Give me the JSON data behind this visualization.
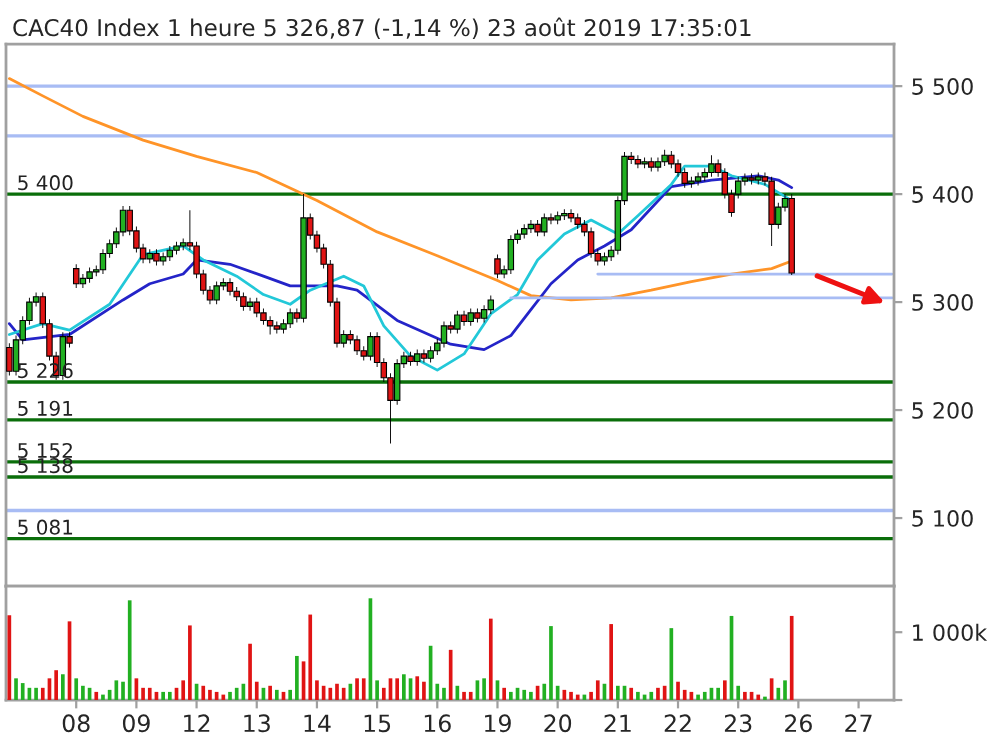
{
  "chart_data": [
    {
      "type": "candlestick",
      "title": "CAC40 Index 1 heure 5 326,87 (-1,14 %) 23 août 2019 17:35:01",
      "categories": [
        null,
        null,
        null,
        null,
        null,
        null,
        null,
        null,
        null,
        null,
        "08",
        null,
        null,
        null,
        null,
        null,
        null,
        null,
        null,
        "09",
        null,
        null,
        null,
        null,
        null,
        null,
        null,
        null,
        "12",
        null,
        null,
        null,
        null,
        null,
        null,
        null,
        null,
        "13",
        null,
        null,
        null,
        null,
        null,
        null,
        null,
        null,
        "14",
        null,
        null,
        null,
        null,
        null,
        null,
        null,
        null,
        "15",
        null,
        null,
        null,
        null,
        null,
        null,
        null,
        null,
        "16",
        null,
        null,
        null,
        null,
        null,
        null,
        null,
        null,
        "19",
        null,
        null,
        null,
        null,
        null,
        null,
        null,
        null,
        "20",
        null,
        null,
        null,
        null,
        null,
        null,
        null,
        null,
        "21",
        null,
        null,
        null,
        null,
        null,
        null,
        null,
        null,
        "22",
        null,
        null,
        null,
        null,
        null,
        null,
        null,
        null,
        "23",
        null,
        null,
        null,
        null,
        null,
        null,
        null,
        null,
        "26",
        null,
        null,
        null,
        null,
        null,
        null,
        null,
        null,
        "27",
        null,
        null,
        null,
        null,
        null
      ],
      "colors": [
        "#e01414",
        "#22b022",
        "#22b022",
        "#22b022",
        "#22b022",
        "#e01414",
        "#e01414",
        "#e01414",
        "#22b022",
        "#e01414",
        "#e01414",
        "#22b022",
        "#22b022",
        "#22b022",
        "#22b022",
        "#22b022",
        "#22b022",
        "#22b022",
        "#e01414",
        "#e01414",
        "#e01414",
        "#22b022",
        "#e01414",
        "#22b022",
        "#22b022",
        "#22b022",
        "#22b022",
        "#e01414",
        "#e01414",
        "#e01414",
        "#e01414",
        "#22b022",
        "#22b022",
        "#e01414",
        "#e01414",
        "#e01414",
        "#22b022",
        "#e01414",
        "#e01414",
        "#e01414",
        "#e01414",
        "#22b022",
        "#22b022",
        "#e01414",
        "#22b022",
        "#e01414",
        "#e01414",
        "#e01414",
        "#e01414",
        "#e01414",
        "#22b022",
        "#e01414",
        "#e01414",
        "#e01414",
        "#22b022",
        "#e01414",
        "#e01414",
        "#e01414",
        "#22b022",
        "#22b022",
        "#e01414",
        "#22b022",
        "#e01414",
        "#22b022",
        "#22b022",
        "#22b022",
        "#e01414",
        "#22b022",
        "#e01414",
        "#22b022",
        "#e01414",
        "#22b022",
        "#22b022",
        "#e01414",
        "#22b022",
        "#22b022",
        "#22b022",
        "#22b022",
        "#22b022",
        "#e01414",
        "#22b022",
        "#e01414",
        "#22b022",
        "#22b022",
        "#e01414",
        "#e01414",
        "#e01414",
        "#e01414",
        "#e01414",
        "#22b022",
        "#22b022",
        "#22b022",
        "#22b022",
        "#e01414",
        "#e01414",
        "#22b022",
        "#e01414",
        "#22b022",
        "#22b022",
        "#e01414",
        "#e01414",
        "#e01414",
        "#22b022",
        "#22b022",
        "#22b022",
        "#22b022",
        "#e01414",
        "#e01414",
        "#e01414",
        "#22b022",
        "#22b022",
        "#e01414",
        "#22b022",
        "#e01414",
        "#e01414",
        "#22b022",
        "#22b022",
        "#e01414",
        null,
        null,
        null,
        null,
        null,
        null,
        null,
        null,
        null,
        null,
        null,
        null,
        null,
        null,
        null
      ],
      "ohlc": [
        [
          5258,
          5262,
          5232,
          5236
        ],
        [
          5236,
          5269,
          5232,
          5265
        ],
        [
          5265,
          5287,
          5261,
          5283
        ],
        [
          5283,
          5304,
          5279,
          5300
        ],
        [
          5300,
          5309,
          5296,
          5305
        ],
        [
          5305,
          5309,
          5276,
          5280
        ],
        [
          5280,
          5284,
          5246,
          5250
        ],
        [
          5250,
          5254,
          5228,
          5232
        ],
        [
          5232,
          5272,
          5228,
          5268
        ],
        [
          5268,
          5272,
          5258,
          5262
        ],
        [
          5331,
          5335,
          5313,
          5317
        ],
        [
          5317,
          5326,
          5313,
          5322
        ],
        [
          5322,
          5332,
          5318,
          5328
        ],
        [
          5328,
          5334,
          5324,
          5330
        ],
        [
          5330,
          5349,
          5326,
          5345
        ],
        [
          5345,
          5358,
          5341,
          5354
        ],
        [
          5354,
          5369,
          5350,
          5365
        ],
        [
          5365,
          5389,
          5361,
          5385
        ],
        [
          5385,
          5389,
          5362,
          5366
        ],
        [
          5366,
          5370,
          5346,
          5350
        ],
        [
          5350,
          5354,
          5336,
          5340
        ],
        [
          5340,
          5349,
          5336,
          5345
        ],
        [
          5345,
          5349,
          5334,
          5338
        ],
        [
          5338,
          5346,
          5334,
          5342
        ],
        [
          5342,
          5352,
          5338,
          5348
        ],
        [
          5348,
          5356,
          5344,
          5352
        ],
        [
          5352,
          5359,
          5348,
          5355
        ],
        [
          5355,
          5385,
          5348,
          5352
        ],
        [
          5352,
          5356,
          5322,
          5326
        ],
        [
          5326,
          5330,
          5307,
          5311
        ],
        [
          5311,
          5315,
          5298,
          5302
        ],
        [
          5302,
          5319,
          5298,
          5315
        ],
        [
          5315,
          5322,
          5311,
          5318
        ],
        [
          5318,
          5322,
          5306,
          5310
        ],
        [
          5310,
          5314,
          5301,
          5305
        ],
        [
          5305,
          5309,
          5292,
          5296
        ],
        [
          5296,
          5304,
          5292,
          5300
        ],
        [
          5300,
          5304,
          5286,
          5290
        ],
        [
          5290,
          5294,
          5279,
          5283
        ],
        [
          5283,
          5287,
          5270,
          5278
        ],
        [
          5278,
          5282,
          5271,
          5275
        ],
        [
          5275,
          5284,
          5271,
          5280
        ],
        [
          5280,
          5294,
          5276,
          5290
        ],
        [
          5290,
          5294,
          5281,
          5285
        ],
        [
          5285,
          5400,
          5281,
          5378
        ],
        [
          5378,
          5382,
          5358,
          5362
        ],
        [
          5362,
          5366,
          5346,
          5350
        ],
        [
          5350,
          5354,
          5331,
          5335
        ],
        [
          5335,
          5339,
          5296,
          5300
        ],
        [
          5300,
          5304,
          5258,
          5262
        ],
        [
          5262,
          5274,
          5258,
          5270
        ],
        [
          5270,
          5274,
          5261,
          5265
        ],
        [
          5265,
          5269,
          5251,
          5255
        ],
        [
          5255,
          5259,
          5246,
          5250
        ],
        [
          5250,
          5272,
          5246,
          5268
        ],
        [
          5268,
          5272,
          5240,
          5244
        ],
        [
          5244,
          5248,
          5226,
          5230
        ],
        [
          5230,
          5234,
          5169,
          5209
        ],
        [
          5209,
          5247,
          5205,
          5243
        ],
        [
          5243,
          5254,
          5239,
          5250
        ],
        [
          5250,
          5254,
          5241,
          5245
        ],
        [
          5245,
          5256,
          5241,
          5252
        ],
        [
          5252,
          5256,
          5244,
          5248
        ],
        [
          5248,
          5259,
          5244,
          5255
        ],
        [
          5255,
          5266,
          5251,
          5262
        ],
        [
          5262,
          5282,
          5258,
          5278
        ],
        [
          5278,
          5282,
          5271,
          5275
        ],
        [
          5275,
          5292,
          5271,
          5288
        ],
        [
          5288,
          5292,
          5278,
          5282
        ],
        [
          5282,
          5294,
          5278,
          5290
        ],
        [
          5290,
          5294,
          5281,
          5285
        ],
        [
          5285,
          5297,
          5281,
          5293
        ],
        [
          5293,
          5306,
          5289,
          5302
        ],
        [
          5340,
          5344,
          5322,
          5326
        ],
        [
          5326,
          5334,
          5322,
          5330
        ],
        [
          5330,
          5362,
          5326,
          5358
        ],
        [
          5358,
          5367,
          5354,
          5363
        ],
        [
          5363,
          5372,
          5359,
          5368
        ],
        [
          5368,
          5376,
          5364,
          5372
        ],
        [
          5372,
          5376,
          5361,
          5365
        ],
        [
          5365,
          5382,
          5361,
          5378
        ],
        [
          5378,
          5382,
          5372,
          5376
        ],
        [
          5376,
          5384,
          5372,
          5380
        ],
        [
          5380,
          5386,
          5376,
          5382
        ],
        [
          5382,
          5386,
          5374,
          5378
        ],
        [
          5378,
          5382,
          5368,
          5372
        ],
        [
          5372,
          5376,
          5361,
          5365
        ],
        [
          5365,
          5369,
          5341,
          5345
        ],
        [
          5345,
          5349,
          5334,
          5338
        ],
        [
          5338,
          5346,
          5334,
          5342
        ],
        [
          5342,
          5352,
          5338,
          5348
        ],
        [
          5348,
          5398,
          5344,
          5394
        ],
        [
          5394,
          5439,
          5390,
          5435
        ],
        [
          5435,
          5439,
          5428,
          5432
        ],
        [
          5432,
          5436,
          5424,
          5428
        ],
        [
          5428,
          5434,
          5424,
          5430
        ],
        [
          5430,
          5434,
          5421,
          5425
        ],
        [
          5425,
          5434,
          5421,
          5430
        ],
        [
          5430,
          5441,
          5426,
          5436
        ],
        [
          5436,
          5440,
          5424,
          5428
        ],
        [
          5428,
          5432,
          5416,
          5420
        ],
        [
          5420,
          5424,
          5406,
          5410
        ],
        [
          5410,
          5416,
          5406,
          5412
        ],
        [
          5412,
          5420,
          5408,
          5416
        ],
        [
          5416,
          5424,
          5412,
          5420
        ],
        [
          5420,
          5436,
          5416,
          5428
        ],
        [
          5428,
          5432,
          5416,
          5420
        ],
        [
          5420,
          5424,
          5396,
          5400
        ],
        [
          5400,
          5404,
          5379,
          5383
        ],
        [
          5400,
          5416,
          5396,
          5412
        ],
        [
          5412,
          5419,
          5408,
          5415
        ],
        [
          5415,
          5419,
          5409,
          5413
        ],
        [
          5413,
          5420,
          5409,
          5416
        ],
        [
          5416,
          5420,
          5408,
          5412
        ],
        [
          5412,
          5416,
          5352,
          5372
        ],
        [
          5372,
          5392,
          5368,
          5388
        ],
        [
          5388,
          5400,
          5384,
          5396
        ],
        [
          5396,
          5400,
          5325,
          5327
        ],
        null,
        null,
        null,
        null,
        null,
        null,
        null,
        null,
        null,
        null,
        null,
        null,
        null,
        null,
        null
      ],
      "series": [
        {
          "type": "line",
          "color": "#ff9428",
          "values": [
            5507,
            null,
            null,
            null,
            null,
            5491,
            null,
            null,
            null,
            null,
            null,
            5472,
            null,
            null,
            null,
            null,
            null,
            null,
            null,
            null,
            5450,
            null,
            null,
            null,
            null,
            null,
            null,
            null,
            5435,
            null,
            null,
            null,
            null,
            null,
            null,
            null,
            null,
            5420,
            null,
            null,
            null,
            null,
            null,
            null,
            null,
            null,
            5394,
            null,
            null,
            null,
            null,
            null,
            null,
            null,
            null,
            5365,
            null,
            null,
            null,
            null,
            null,
            null,
            null,
            null,
            5343,
            null,
            null,
            null,
            null,
            null,
            null,
            null,
            null,
            5320,
            null,
            null,
            null,
            null,
            5306,
            null,
            null,
            null,
            null,
            null,
            5302,
            null,
            null,
            null,
            null,
            null,
            5304,
            null,
            null,
            null,
            null,
            null,
            5311,
            null,
            null,
            null,
            null,
            null,
            5319,
            null,
            null,
            null,
            null,
            null,
            5326,
            null,
            null,
            null,
            null,
            null,
            5331,
            null,
            null,
            5338,
            null,
            null,
            null,
            null,
            null,
            null,
            null,
            null,
            null,
            null,
            null,
            null,
            null,
            null,
            null
          ]
        },
        {
          "type": "line",
          "color": "#2424c8",
          "values": [
            5280,
            null,
            5265,
            null,
            null,
            null,
            null,
            null,
            null,
            5270,
            null,
            null,
            null,
            null,
            null,
            null,
            null,
            5302,
            null,
            null,
            null,
            5317,
            null,
            null,
            null,
            null,
            5326,
            null,
            5339,
            null,
            null,
            null,
            null,
            5335,
            null,
            null,
            null,
            null,
            5324,
            null,
            null,
            null,
            5315,
            null,
            null,
            null,
            null,
            null,
            null,
            5315,
            null,
            null,
            5311,
            null,
            null,
            null,
            null,
            null,
            5283,
            null,
            null,
            null,
            null,
            null,
            null,
            null,
            5261,
            null,
            null,
            null,
            null,
            5256,
            null,
            null,
            null,
            5269,
            null,
            null,
            5293,
            null,
            null,
            5317,
            null,
            null,
            null,
            5339,
            null,
            null,
            null,
            5352,
            null,
            null,
            null,
            5367,
            null,
            null,
            null,
            null,
            null,
            5407,
            null,
            null,
            null,
            null,
            null,
            5413,
            null,
            null,
            null,
            null,
            null,
            null,
            5417,
            null,
            null,
            5413,
            null,
            5406,
            null,
            null,
            null,
            null,
            null,
            null,
            null,
            null,
            null,
            null,
            null,
            null,
            null,
            null,
            null
          ]
        },
        {
          "type": "line",
          "color": "#22c8d8",
          "values": [
            5270,
            null,
            null,
            null,
            null,
            5280,
            null,
            null,
            null,
            5274,
            null,
            null,
            null,
            null,
            null,
            5298,
            null,
            null,
            null,
            null,
            5344,
            null,
            null,
            null,
            null,
            null,
            5352,
            null,
            null,
            5339,
            null,
            null,
            null,
            null,
            5324,
            null,
            null,
            null,
            5307,
            null,
            null,
            null,
            5298,
            null,
            null,
            5311,
            null,
            null,
            null,
            null,
            5324,
            null,
            null,
            5315,
            null,
            null,
            5278,
            null,
            null,
            null,
            5250,
            null,
            null,
            null,
            5237,
            null,
            null,
            null,
            5252,
            null,
            null,
            null,
            5289,
            null,
            null,
            null,
            5307,
            null,
            null,
            5339,
            null,
            null,
            null,
            5363,
            null,
            null,
            null,
            5376,
            null,
            null,
            null,
            5363,
            null,
            null,
            5380,
            null,
            null,
            null,
            null,
            5409,
            null,
            5426,
            null,
            null,
            null,
            5426,
            null,
            null,
            5417,
            null,
            null,
            null,
            null,
            5409,
            null,
            null,
            null,
            5394,
            null,
            null,
            null,
            null,
            null,
            null,
            null,
            null,
            null,
            null,
            null,
            null,
            null,
            null,
            null
          ]
        },
        {
          "type": "line",
          "color": "#a8bcf4",
          "values": [
            null,
            null,
            null,
            null,
            null,
            null,
            null,
            null,
            null,
            null,
            null,
            null,
            null,
            null,
            null,
            null,
            null,
            null,
            null,
            null,
            null,
            null,
            null,
            null,
            null,
            null,
            null,
            null,
            null,
            null,
            null,
            null,
            null,
            null,
            null,
            null,
            null,
            null,
            null,
            null,
            null,
            null,
            null,
            null,
            null,
            null,
            null,
            null,
            null,
            null,
            null,
            null,
            null,
            null,
            null,
            null,
            null,
            null,
            null,
            null,
            null,
            null,
            null,
            null,
            null,
            null,
            null,
            null,
            null,
            null,
            null,
            null,
            null,
            null,
            null,
            5304,
            null,
            null,
            null,
            null,
            null,
            null,
            null,
            null,
            null,
            null,
            null,
            null,
            null,
            null,
            null,
            null,
            null,
            null,
            null,
            null,
            null,
            null,
            null,
            null,
            null,
            null,
            null,
            null,
            null,
            null,
            null,
            null,
            null,
            null,
            null,
            null,
            null,
            null,
            null,
            null,
            null,
            null,
            null,
            null,
            null,
            null,
            null,
            null,
            null,
            null,
            null,
            null,
            null,
            null,
            null,
            null,
            5304
          ]
        },
        {
          "type": "line",
          "color": "#a8bcf4",
          "values": [
            null,
            null,
            null,
            null,
            null,
            null,
            null,
            null,
            null,
            null,
            null,
            null,
            null,
            null,
            null,
            null,
            null,
            null,
            null,
            null,
            null,
            null,
            null,
            null,
            null,
            null,
            null,
            null,
            null,
            null,
            null,
            null,
            null,
            null,
            null,
            null,
            null,
            null,
            null,
            null,
            null,
            null,
            null,
            null,
            null,
            null,
            null,
            null,
            null,
            null,
            null,
            null,
            null,
            null,
            null,
            null,
            null,
            null,
            null,
            null,
            null,
            null,
            null,
            null,
            null,
            null,
            null,
            null,
            null,
            null,
            null,
            null,
            null,
            null,
            null,
            null,
            null,
            null,
            null,
            null,
            null,
            null,
            null,
            null,
            null,
            null,
            null,
            null,
            5326,
            null,
            null,
            null,
            null,
            null,
            null,
            null,
            null,
            null,
            null,
            null,
            null,
            null,
            null,
            null,
            null,
            null,
            null,
            null,
            null,
            null,
            null,
            null,
            null,
            null,
            null,
            null,
            null,
            null,
            null,
            null,
            null,
            null,
            null,
            null,
            null,
            null,
            null,
            null,
            null,
            null,
            null,
            null,
            5326
          ]
        }
      ],
      "ref_lines": [
        {
          "axis": "y",
          "value": 5500,
          "label": null,
          "color": "#a8bcf4"
        },
        {
          "axis": "y",
          "value": 5454,
          "label": null,
          "color": "#a8bcf4"
        },
        {
          "axis": "y",
          "value": 5107,
          "label": null,
          "color": "#a8bcf4"
        },
        {
          "axis": "y",
          "value": 5400,
          "label": "5 400",
          "color": "#0a6e0a"
        },
        {
          "axis": "y",
          "value": 5226,
          "label": "5 226",
          "color": "#0a6e0a"
        },
        {
          "axis": "y",
          "value": 5191,
          "label": "5 191",
          "color": "#0a6e0a"
        },
        {
          "axis": "y",
          "value": 5152,
          "label": "5 152",
          "color": "#0a6e0a"
        },
        {
          "axis": "y",
          "value": 5138,
          "label": "5 138",
          "color": "#0a6e0a"
        },
        {
          "axis": "y",
          "value": 5081,
          "label": "5 081",
          "color": "#0a6e0a"
        }
      ],
      "ylim": [
        5037,
        5539
      ],
      "yticks": [
        {
          "value": 5100,
          "label": "5 100"
        },
        {
          "value": 5200,
          "label": "5 200"
        },
        {
          "value": 5300,
          "label": "5 300"
        },
        {
          "value": 5400,
          "label": "5 400"
        },
        {
          "value": 5500,
          "label": "5 500"
        }
      ],
      "tick_labels": "y"
    },
    {
      "type": "bar",
      "categories": [
        null,
        null,
        null,
        null,
        null,
        null,
        null,
        null,
        null,
        null,
        "08",
        null,
        null,
        null,
        null,
        null,
        null,
        null,
        null,
        "09",
        null,
        null,
        null,
        null,
        null,
        null,
        null,
        null,
        "12",
        null,
        null,
        null,
        null,
        null,
        null,
        null,
        null,
        "13",
        null,
        null,
        null,
        null,
        null,
        null,
        null,
        null,
        "14",
        null,
        null,
        null,
        null,
        null,
        null,
        null,
        null,
        "15",
        null,
        null,
        null,
        null,
        null,
        null,
        null,
        null,
        "16",
        null,
        null,
        null,
        null,
        null,
        null,
        null,
        null,
        "19",
        null,
        null,
        null,
        null,
        null,
        null,
        null,
        null,
        "20",
        null,
        null,
        null,
        null,
        null,
        null,
        null,
        null,
        "21",
        null,
        null,
        null,
        null,
        null,
        null,
        null,
        null,
        "22",
        null,
        null,
        null,
        null,
        null,
        null,
        null,
        null,
        "23",
        null,
        null,
        null,
        null,
        null,
        null,
        null,
        null,
        "26",
        null,
        null,
        null,
        null,
        null,
        null,
        null,
        null,
        "27",
        null,
        null,
        null,
        null,
        null
      ],
      "values": [
        1250,
        320,
        250,
        180,
        180,
        180,
        320,
        440,
        380,
        1160,
        320,
        210,
        180,
        120,
        80,
        150,
        290,
        270,
        1470,
        320,
        180,
        180,
        120,
        120,
        120,
        180,
        290,
        1100,
        240,
        210,
        150,
        120,
        80,
        120,
        180,
        240,
        830,
        270,
        180,
        210,
        150,
        120,
        150,
        650,
        570,
        1260,
        290,
        210,
        180,
        240,
        180,
        240,
        320,
        320,
        1500,
        290,
        180,
        320,
        320,
        380,
        320,
        350,
        270,
        800,
        240,
        180,
        740,
        210,
        120,
        120,
        290,
        320,
        1200,
        290,
        180,
        120,
        180,
        150,
        120,
        210,
        240,
        1090,
        210,
        150,
        120,
        80,
        80,
        120,
        290,
        240,
        1120,
        210,
        210,
        180,
        120,
        80,
        120,
        180,
        210,
        1060,
        270,
        150,
        120,
        80,
        120,
        180,
        180,
        290,
        1240,
        210,
        120,
        120,
        80,
        50,
        320,
        180,
        290,
        1240,
        null,
        null,
        null,
        null,
        null,
        null,
        null,
        null,
        null,
        null,
        null,
        null,
        null,
        null,
        null
      ],
      "colors": [
        "#e01414",
        "#22b022",
        "#22b022",
        "#22b022",
        "#22b022",
        "#e01414",
        "#e01414",
        "#e01414",
        "#22b022",
        "#e01414",
        "#22b022",
        "#22b022",
        "#22b022",
        "#e01414",
        "#22b022",
        "#22b022",
        "#22b022",
        "#22b022",
        "#22b022",
        "#e01414",
        "#e01414",
        "#e01414",
        "#e01414",
        "#22b022",
        "#22b022",
        "#e01414",
        "#e01414",
        "#e01414",
        "#22b022",
        "#e01414",
        "#e01414",
        "#e01414",
        "#e01414",
        "#22b022",
        "#22b022",
        "#22b022",
        "#e01414",
        "#e01414",
        "#22b022",
        "#e01414",
        "#22b022",
        "#e01414",
        "#22b022",
        "#22b022",
        "#e01414",
        "#e01414",
        "#e01414",
        "#e01414",
        "#e01414",
        "#e01414",
        "#e01414",
        "#22b022",
        "#e01414",
        "#e01414",
        "#22b022",
        "#22b022",
        "#e01414",
        "#e01414",
        "#e01414",
        "#22b022",
        "#22b022",
        "#e01414",
        "#e01414",
        "#22b022",
        "#22b022",
        "#22b022",
        "#e01414",
        "#22b022",
        "#e01414",
        "#e01414",
        "#22b022",
        "#22b022",
        "#e01414",
        "#22b022",
        "#e01414",
        "#22b022",
        "#22b022",
        "#22b022",
        "#22b022",
        "#e01414",
        "#22b022",
        "#22b022",
        "#22b022",
        "#e01414",
        "#e01414",
        "#e01414",
        "#22b022",
        "#e01414",
        "#e01414",
        "#22b022",
        "#e01414",
        "#22b022",
        "#22b022",
        "#e01414",
        "#22b022",
        "#22b022",
        "#22b022",
        "#e01414",
        "#e01414",
        "#22b022",
        "#e01414",
        "#e01414",
        "#e01414",
        "#22b022",
        "#22b022",
        "#22b022",
        "#22b022",
        "#e01414",
        "#22b022",
        "#22b022",
        "#e01414",
        "#e01414",
        "#e01414",
        "#22b022",
        "#e01414",
        "#22b022",
        "#22b022",
        "#e01414",
        null,
        null,
        null,
        null,
        null,
        null,
        null,
        null,
        null,
        null,
        null,
        null,
        null,
        null,
        null
      ],
      "ylim": [
        0,
        1680
      ],
      "yticks": [
        {
          "value": 0,
          "label": null
        },
        {
          "value": 1000,
          "label": "1 000k"
        }
      ]
    }
  ]
}
